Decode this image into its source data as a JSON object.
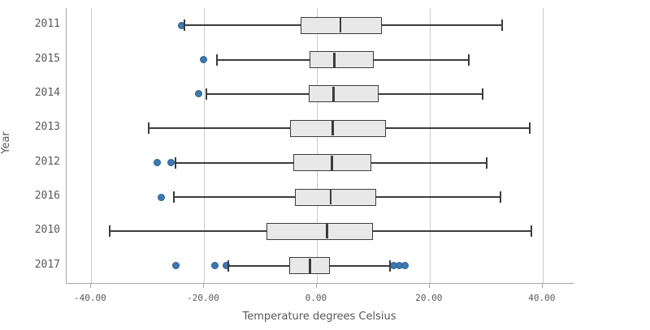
{
  "chart": {
    "y_axis_title": "Year",
    "x_axis_title": "Temperature degrees Celsius"
  },
  "colors": {
    "outlier_fill": "#3c78b4",
    "outlier_border": "#2d5e8f",
    "box_fill": "#e8e8e8",
    "box_border": "#3c3c3c",
    "gridline": "#cccccc",
    "axis_line": "#a6a6a6",
    "text": "#595959",
    "background": "#ffffff"
  },
  "chart_data": {
    "type": "boxplot",
    "orientation": "horizontal",
    "title": "",
    "xlabel": "Temperature degrees Celsius",
    "ylabel": "Year",
    "xlim": [
      -44.3,
      45.5
    ],
    "grid": "vertical-only",
    "legend": "none",
    "x_ticks": [
      {
        "value": -40,
        "label": "-40.00"
      },
      {
        "value": -20,
        "label": "-20.00"
      },
      {
        "value": 0,
        "label": "0.00"
      },
      {
        "value": 20,
        "label": "20.00"
      },
      {
        "value": 40,
        "label": "40.00"
      }
    ],
    "categories": [
      "2011",
      "2015",
      "2014",
      "2013",
      "2012",
      "2016",
      "2010",
      "2017"
    ],
    "series": [
      {
        "category": "2011",
        "whisker_low": -23.5,
        "q1": -2.9,
        "median": 4.2,
        "q3": 11.6,
        "whisker_high": 32.8,
        "outliers": [
          -24.0
        ]
      },
      {
        "category": "2015",
        "whisker_low": -17.7,
        "q1": -1.2,
        "median": 3.1,
        "q3": 10.1,
        "whisker_high": 26.9,
        "outliers": [
          -20.0
        ]
      },
      {
        "category": "2014",
        "whisker_low": -19.5,
        "q1": -1.4,
        "median": 3.0,
        "q3": 10.9,
        "whisker_high": 29.4,
        "outliers": [
          -20.9
        ]
      },
      {
        "category": "2013",
        "whisker_low": -29.8,
        "q1": -4.7,
        "median": 2.8,
        "q3": 12.2,
        "whisker_high": 37.8,
        "outliers": []
      },
      {
        "category": "2012",
        "whisker_low": -25.0,
        "q1": -4.1,
        "median": 2.7,
        "q3": 9.6,
        "whisker_high": 30.1,
        "outliers": [
          -28.3,
          -25.8
        ]
      },
      {
        "category": "2016",
        "whisker_low": -25.3,
        "q1": -3.8,
        "median": 2.5,
        "q3": 10.6,
        "whisker_high": 32.5,
        "outliers": [
          -27.5
        ]
      },
      {
        "category": "2010",
        "whisker_low": -36.7,
        "q1": -8.9,
        "median": 1.8,
        "q3": 9.9,
        "whisker_high": 38.0,
        "outliers": []
      },
      {
        "category": "2017",
        "whisker_low": -15.6,
        "q1": -4.9,
        "median": -1.2,
        "q3": 2.3,
        "whisker_high": 13.0,
        "outliers": [
          -24.9,
          -18.0,
          -16.0,
          13.6,
          14.6,
          15.6
        ]
      }
    ]
  }
}
